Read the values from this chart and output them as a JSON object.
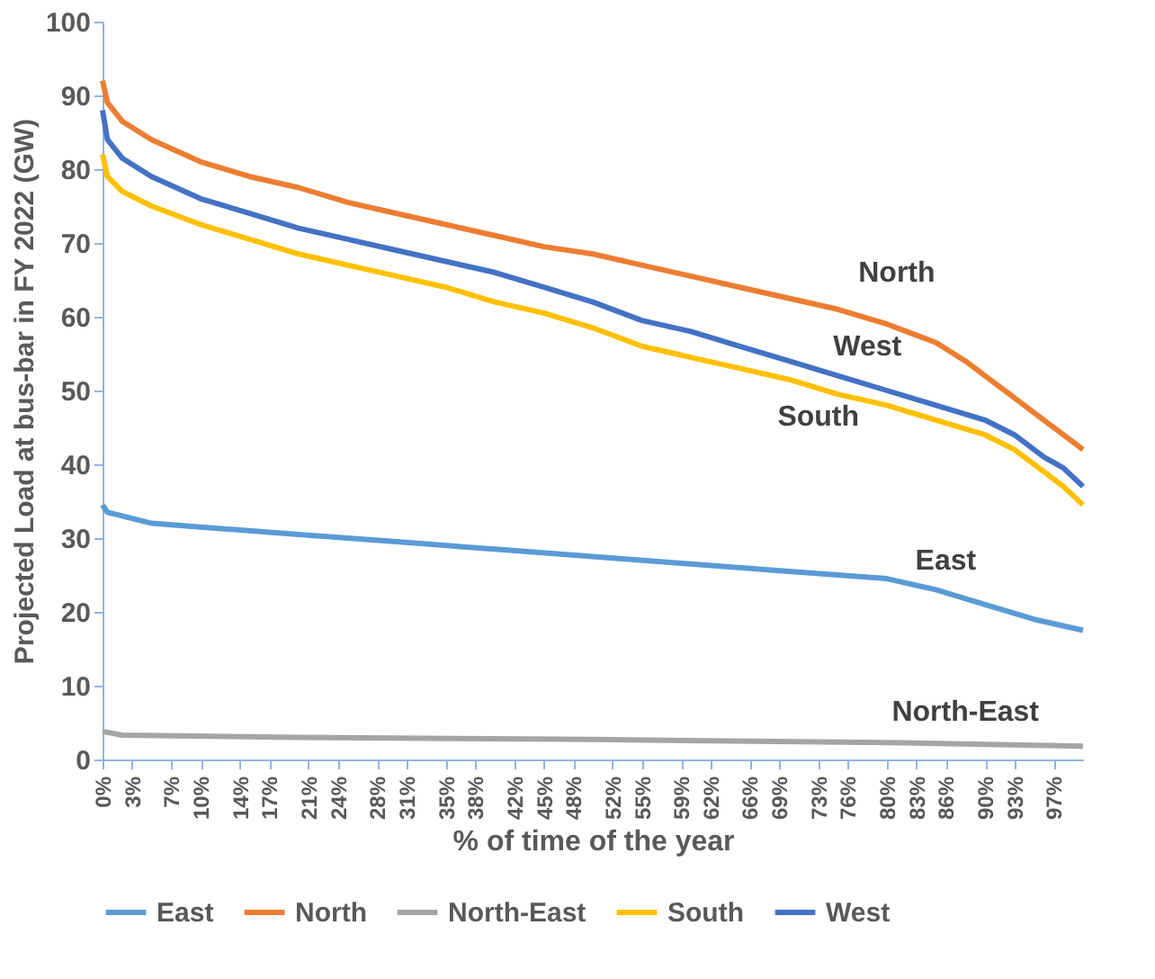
{
  "chart_data": {
    "type": "line",
    "xlabel": "% of time of the year",
    "ylabel": "Projected Load at bus-bar in FY 2022 (GW)",
    "xlim": [
      0,
      100
    ],
    "ylim": [
      0,
      100
    ],
    "yticks": [
      0,
      10,
      20,
      30,
      40,
      50,
      60,
      70,
      80,
      90,
      100
    ],
    "xticks": [
      {
        "value": 0,
        "label": "0%"
      },
      {
        "value": 3,
        "label": "3%"
      },
      {
        "value": 7,
        "label": "7%"
      },
      {
        "value": 10,
        "label": "10%"
      },
      {
        "value": 14,
        "label": "14%"
      },
      {
        "value": 17,
        "label": "17%"
      },
      {
        "value": 21,
        "label": "21%"
      },
      {
        "value": 24,
        "label": "24%"
      },
      {
        "value": 28,
        "label": "28%"
      },
      {
        "value": 31,
        "label": "31%"
      },
      {
        "value": 35,
        "label": "35%"
      },
      {
        "value": 38,
        "label": "38%"
      },
      {
        "value": 42,
        "label": "42%"
      },
      {
        "value": 45,
        "label": "45%"
      },
      {
        "value": 48,
        "label": "48%"
      },
      {
        "value": 52,
        "label": "52%"
      },
      {
        "value": 55,
        "label": "55%"
      },
      {
        "value": 59,
        "label": "59%"
      },
      {
        "value": 62,
        "label": "62%"
      },
      {
        "value": 66,
        "label": "66%"
      },
      {
        "value": 69,
        "label": "69%"
      },
      {
        "value": 73,
        "label": "73%"
      },
      {
        "value": 76,
        "label": "76%"
      },
      {
        "value": 80,
        "label": "80%"
      },
      {
        "value": 83,
        "label": "83%"
      },
      {
        "value": 86,
        "label": "86%"
      },
      {
        "value": 90,
        "label": "90%"
      },
      {
        "value": 93,
        "label": "93%"
      },
      {
        "value": 97,
        "label": "97%"
      }
    ],
    "grid": false,
    "legend": "bottom",
    "line_style": "solid",
    "marker": "none",
    "series": [
      {
        "name": "East",
        "color": "#5b9bd5",
        "x": [
          0,
          0.5,
          2,
          5,
          10,
          20,
          30,
          40,
          50,
          60,
          70,
          80,
          85,
          90,
          95,
          100
        ],
        "values": [
          34.5,
          33.5,
          33,
          32,
          31.5,
          30.5,
          29.5,
          28.5,
          27.5,
          26.5,
          25.5,
          24.5,
          23,
          21,
          19,
          17.5
        ]
      },
      {
        "name": "North",
        "color": "#ed7d31",
        "x": [
          0,
          0.5,
          2,
          5,
          10,
          15,
          20,
          25,
          30,
          35,
          40,
          45,
          50,
          55,
          60,
          65,
          70,
          75,
          80,
          85,
          88,
          90,
          93,
          96,
          98,
          100
        ],
        "values": [
          92,
          89,
          86.5,
          84,
          81,
          79,
          77.5,
          75.5,
          74,
          72.5,
          71,
          69.5,
          68.5,
          67,
          65.5,
          64,
          62.5,
          61,
          59,
          56.5,
          54,
          52,
          49,
          46,
          44,
          42
        ]
      },
      {
        "name": "North-East",
        "color": "#a5a5a5",
        "x": [
          0,
          2,
          20,
          50,
          80,
          100
        ],
        "values": [
          3.8,
          3.3,
          3,
          2.7,
          2.3,
          1.8
        ]
      },
      {
        "name": "South",
        "color": "#ffc000",
        "x": [
          0,
          0.5,
          2,
          5,
          10,
          15,
          20,
          25,
          30,
          35,
          40,
          45,
          50,
          55,
          60,
          65,
          70,
          75,
          80,
          85,
          90,
          93,
          96,
          98,
          100
        ],
        "values": [
          82,
          79,
          77,
          75,
          72.5,
          70.5,
          68.5,
          67,
          65.5,
          64,
          62,
          60.5,
          58.5,
          56,
          54.5,
          53,
          51.5,
          49.5,
          48,
          46,
          44,
          42,
          39,
          37,
          34.5
        ]
      },
      {
        "name": "West",
        "color": "#4472c4",
        "x": [
          0,
          0.5,
          2,
          5,
          10,
          15,
          20,
          25,
          30,
          35,
          40,
          45,
          50,
          55,
          60,
          65,
          70,
          75,
          80,
          85,
          90,
          93,
          96,
          98,
          100
        ],
        "values": [
          88,
          84,
          81.5,
          79,
          76,
          74,
          72,
          70.5,
          69,
          67.5,
          66,
          64,
          62,
          59.5,
          58,
          56,
          54,
          52,
          50,
          48,
          46,
          44,
          41,
          39.5,
          37
        ]
      }
    ],
    "annotations": [
      "North",
      "West",
      "South",
      "East",
      "North-East"
    ]
  }
}
